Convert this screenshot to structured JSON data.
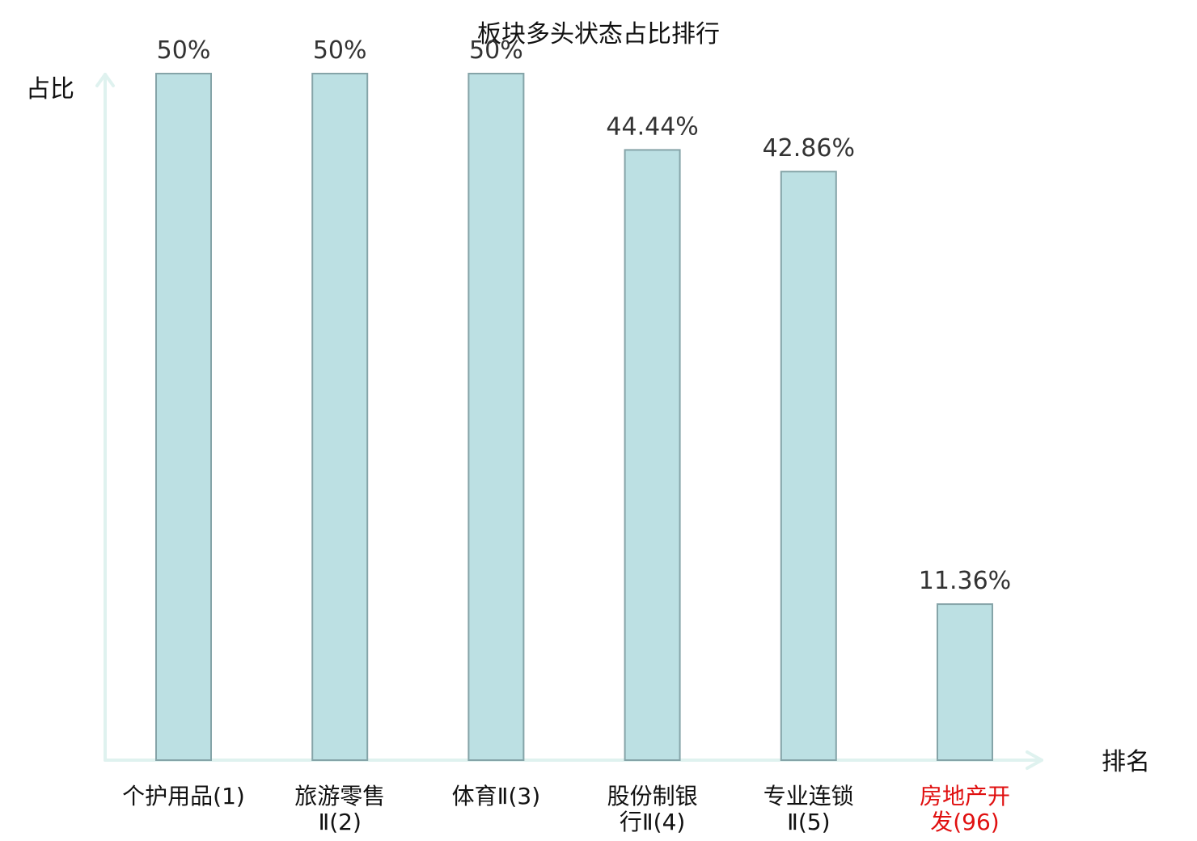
{
  "chart_data": {
    "type": "bar",
    "title": "板块多头状态占比排行",
    "ylabel": "占比",
    "xlabel": "排名",
    "ylim": [
      0,
      50
    ],
    "grid": false,
    "categories": [
      [
        "个护用品(1)"
      ],
      [
        "旅游零售",
        "Ⅱ(2)"
      ],
      [
        "体育Ⅱ(3)"
      ],
      [
        "股份制银",
        "行Ⅱ(4)"
      ],
      [
        "专业连锁",
        "Ⅱ(5)"
      ],
      [
        "房地产开",
        "发(96)"
      ]
    ],
    "values": [
      50,
      50,
      50,
      44.44,
      42.86,
      11.36
    ],
    "value_labels": [
      "50%",
      "50%",
      "50%",
      "44.44%",
      "42.86%",
      "11.36%"
    ],
    "highlight_index": 5,
    "colors": {
      "bar_fill": "#bce0e3",
      "bar_stroke": "#85a4a8",
      "axis": "#dff2ef",
      "highlight_text": "#e01010",
      "text": "#111111"
    }
  }
}
